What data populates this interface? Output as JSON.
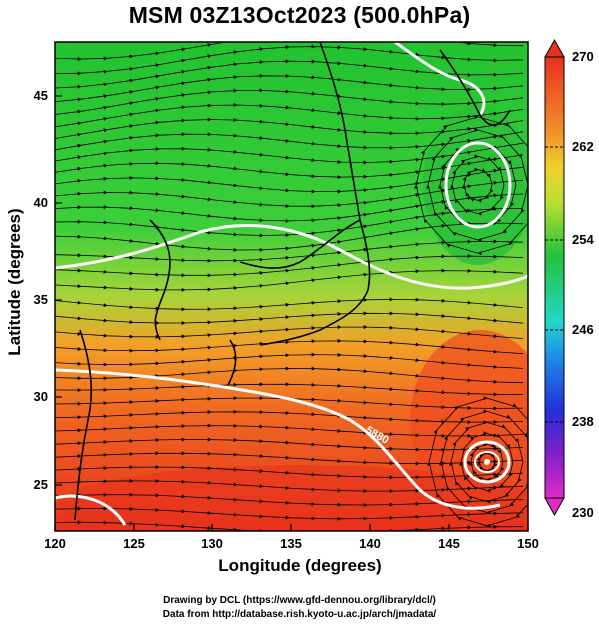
{
  "title": "MSM 03Z13Oct2023 (500.0hPa)",
  "xaxis": {
    "label": "Longitude (degrees)",
    "ticks": [
      "120",
      "125",
      "130",
      "135",
      "140",
      "145",
      "150"
    ]
  },
  "yaxis": {
    "label": "Latitude  (degrees)",
    "ticks": [
      "25",
      "30",
      "35",
      "40",
      "45"
    ]
  },
  "colorbar": {
    "ticks": [
      "270",
      "262",
      "254",
      "246",
      "238",
      "230"
    ],
    "min": 230,
    "max": 270
  },
  "contour_label": "5880",
  "credits": {
    "line1": "Drawing by DCL (https://www.gfd-dennou.org/library/dcl/)",
    "line2": "Data from http://database.rish.kyoto-u.ac.jp/arch/jmadata/"
  },
  "colors": {
    "warm": "#e8321c",
    "mid": "#f3a22a",
    "cool": "#29c43a",
    "contour": "#ffffff",
    "coast": "#000000"
  }
}
